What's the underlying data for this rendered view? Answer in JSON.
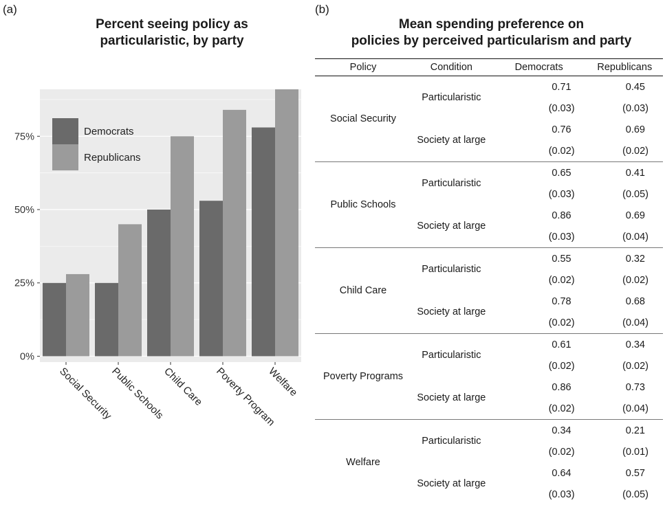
{
  "panel_a_label": "(a)",
  "panel_b_label": "(b)",
  "chart_data": {
    "type": "bar",
    "title": "Percent seeing policy as particularistic, by party",
    "title_lines": [
      "Percent seeing policy as",
      "particularistic, by party"
    ],
    "categories": [
      "Social Security",
      "Public Schools",
      "Child Care",
      "Poverty Program",
      "Welfare"
    ],
    "series": [
      {
        "name": "Democrats",
        "values": [
          25,
          25,
          50,
          53,
          78
        ],
        "color": "#6a6a6a"
      },
      {
        "name": "Republicans",
        "values": [
          28,
          45,
          75,
          84,
          91
        ],
        "color": "#9b9b9b"
      }
    ],
    "y_ticks": [
      0,
      25,
      50,
      75
    ],
    "y_tick_labels": [
      "0%",
      "25%",
      "50%",
      "75%"
    ],
    "ylim": [
      -2,
      91
    ],
    "xlabel": "",
    "ylabel": "",
    "legend_position": "top-left",
    "plot_background": "#ebebeb",
    "grid_color": "#ffffff"
  },
  "table": {
    "title_lines": [
      "Mean spending preference on",
      "policies by perceived particularism and party"
    ],
    "headers": [
      "Policy",
      "Condition",
      "Democrats",
      "Republicans"
    ],
    "groups": [
      {
        "policy": "Social Security",
        "rows": [
          {
            "condition": "Particularistic",
            "dem": "0.71",
            "dem_se": "(0.03)",
            "rep": "0.45",
            "rep_se": "(0.03)"
          },
          {
            "condition": "Society at large",
            "dem": "0.76",
            "dem_se": "(0.02)",
            "rep": "0.69",
            "rep_se": "(0.02)"
          }
        ]
      },
      {
        "policy": "Public Schools",
        "rows": [
          {
            "condition": "Particularistic",
            "dem": "0.65",
            "dem_se": "(0.03)",
            "rep": "0.41",
            "rep_se": "(0.05)"
          },
          {
            "condition": "Society at large",
            "dem": "0.86",
            "dem_se": "(0.03)",
            "rep": "0.69",
            "rep_se": "(0.04)"
          }
        ]
      },
      {
        "policy": "Child Care",
        "rows": [
          {
            "condition": "Particularistic",
            "dem": "0.55",
            "dem_se": "(0.02)",
            "rep": "0.32",
            "rep_se": "(0.02)"
          },
          {
            "condition": "Society at large",
            "dem": "0.78",
            "dem_se": "(0.02)",
            "rep": "0.68",
            "rep_se": "(0.04)"
          }
        ]
      },
      {
        "policy": "Poverty Programs",
        "rows": [
          {
            "condition": "Particularistic",
            "dem": "0.61",
            "dem_se": "(0.02)",
            "rep": "0.34",
            "rep_se": "(0.02)"
          },
          {
            "condition": "Society at large",
            "dem": "0.86",
            "dem_se": "(0.02)",
            "rep": "0.73",
            "rep_se": "(0.04)"
          }
        ]
      },
      {
        "policy": "Welfare",
        "rows": [
          {
            "condition": "Particularistic",
            "dem": "0.34",
            "dem_se": "(0.02)",
            "rep": "0.21",
            "rep_se": "(0.01)"
          },
          {
            "condition": "Society at large",
            "dem": "0.64",
            "dem_se": "(0.03)",
            "rep": "0.57",
            "rep_se": "(0.05)"
          }
        ]
      }
    ]
  }
}
